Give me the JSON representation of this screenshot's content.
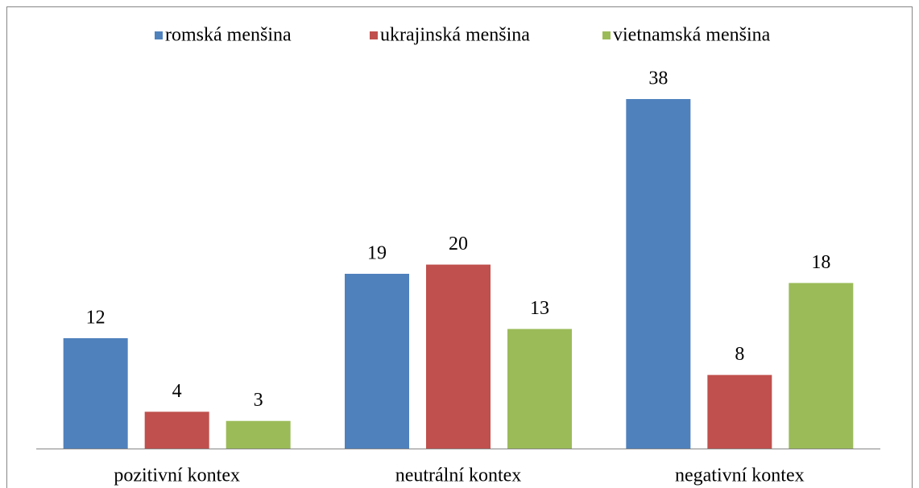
{
  "chart_data": {
    "type": "bar",
    "categories": [
      "pozitivní kontex",
      "neutrální kontex",
      "negativní kontex"
    ],
    "series": [
      {
        "name": "romská menšina",
        "color": "#4f81bd",
        "values": [
          12,
          19,
          38
        ]
      },
      {
        "name": "ukrajinská menšina",
        "color": "#c0504d",
        "values": [
          4,
          20,
          8
        ]
      },
      {
        "name": "vietnamská menšina",
        "color": "#9bbb59",
        "values": [
          3,
          13,
          18
        ]
      }
    ],
    "legend": "top"
  }
}
